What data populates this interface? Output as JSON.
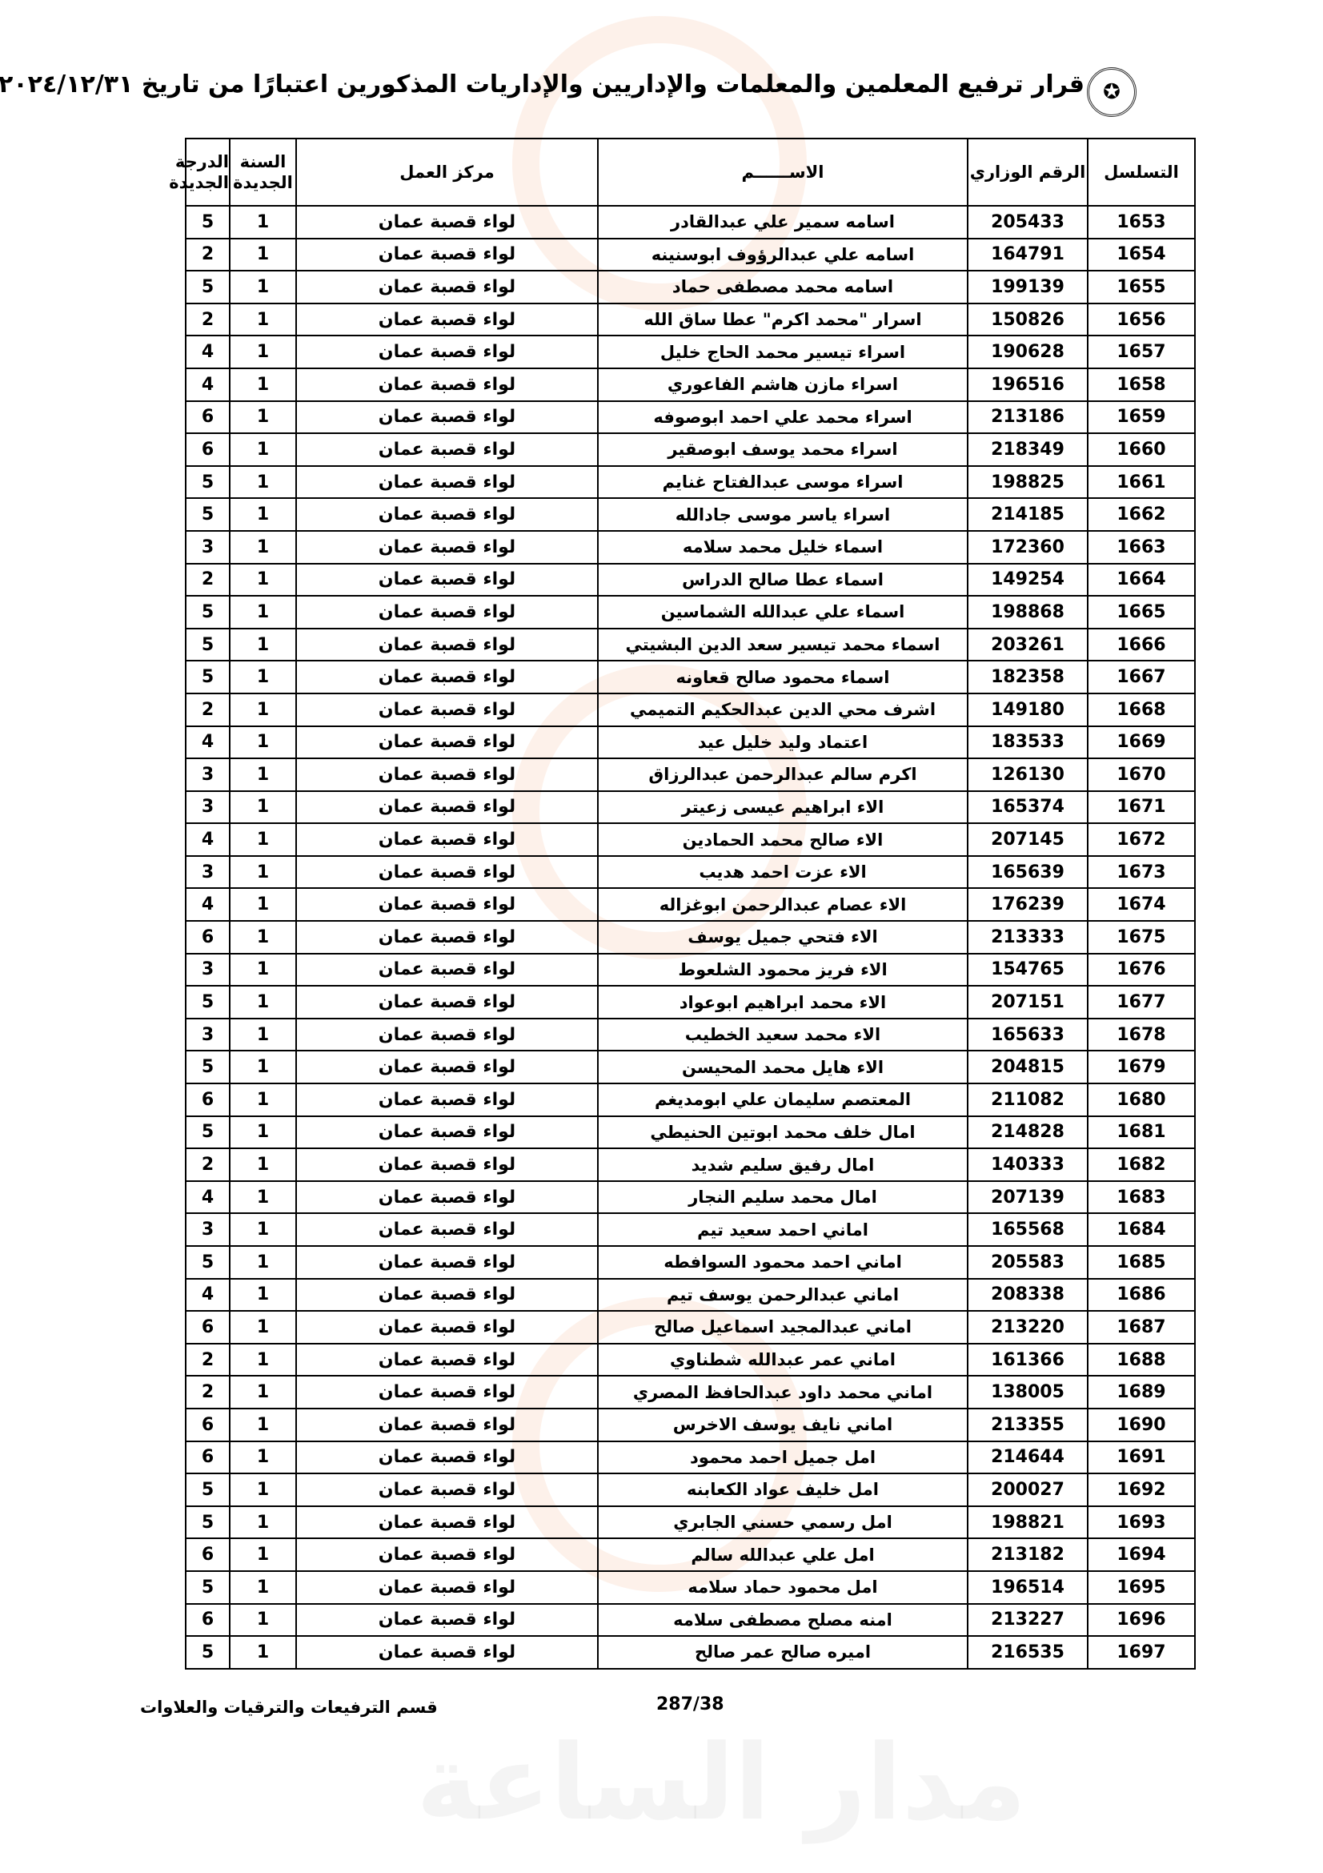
{
  "title": "قرار ترفيع المعلمين والمعلمات والإداريين والإداريات المذكورين اعتبارًا من تاريخ ٢٠٢٤/١٢/٣١",
  "logo_icon": "ministry-emblem-icon",
  "watermark": "مدار الساعة الإخبارية",
  "columns": {
    "serial": "التسلسل",
    "ministry_no": "الرقم الوزاري",
    "name": "الاســــــم",
    "work_center": "مركز العمل",
    "new_year": "السنة الجديدة",
    "new_grade": "الدرجة الجديدة"
  },
  "rows": [
    {
      "serial": "1653",
      "ministry_no": "205433",
      "name": "اسامه سمير علي عبدالقادر",
      "work_center": "لواء قصبة عمان",
      "new_year": "1",
      "new_grade": "5"
    },
    {
      "serial": "1654",
      "ministry_no": "164791",
      "name": "اسامه علي عبدالرؤوف ابوسنينه",
      "work_center": "لواء قصبة عمان",
      "new_year": "1",
      "new_grade": "2"
    },
    {
      "serial": "1655",
      "ministry_no": "199139",
      "name": "اسامه محمد مصطفى حماد",
      "work_center": "لواء قصبة عمان",
      "new_year": "1",
      "new_grade": "5"
    },
    {
      "serial": "1656",
      "ministry_no": "150826",
      "name": "اسرار \"محمد اكرم\" عطا ساق الله",
      "work_center": "لواء قصبة عمان",
      "new_year": "1",
      "new_grade": "2"
    },
    {
      "serial": "1657",
      "ministry_no": "190628",
      "name": "اسراء تيسير محمد الحاج خليل",
      "work_center": "لواء قصبة عمان",
      "new_year": "1",
      "new_grade": "4"
    },
    {
      "serial": "1658",
      "ministry_no": "196516",
      "name": "اسراء مازن هاشم الفاعوري",
      "work_center": "لواء قصبة عمان",
      "new_year": "1",
      "new_grade": "4"
    },
    {
      "serial": "1659",
      "ministry_no": "213186",
      "name": "اسراء محمد علي احمد ابوصوفه",
      "work_center": "لواء قصبة عمان",
      "new_year": "1",
      "new_grade": "6"
    },
    {
      "serial": "1660",
      "ministry_no": "218349",
      "name": "اسراء محمد يوسف ابوصقير",
      "work_center": "لواء قصبة عمان",
      "new_year": "1",
      "new_grade": "6"
    },
    {
      "serial": "1661",
      "ministry_no": "198825",
      "name": "اسراء موسى عبدالفتاح غنايم",
      "work_center": "لواء قصبة عمان",
      "new_year": "1",
      "new_grade": "5"
    },
    {
      "serial": "1662",
      "ministry_no": "214185",
      "name": "اسراء ياسر موسى جادالله",
      "work_center": "لواء قصبة عمان",
      "new_year": "1",
      "new_grade": "5"
    },
    {
      "serial": "1663",
      "ministry_no": "172360",
      "name": "اسماء خليل محمد سلامه",
      "work_center": "لواء قصبة عمان",
      "new_year": "1",
      "new_grade": "3"
    },
    {
      "serial": "1664",
      "ministry_no": "149254",
      "name": "اسماء عطا صالح الدراس",
      "work_center": "لواء قصبة عمان",
      "new_year": "1",
      "new_grade": "2"
    },
    {
      "serial": "1665",
      "ministry_no": "198868",
      "name": "اسماء علي عبدالله الشماسين",
      "work_center": "لواء قصبة عمان",
      "new_year": "1",
      "new_grade": "5"
    },
    {
      "serial": "1666",
      "ministry_no": "203261",
      "name": "اسماء محمد تيسير سعد الدين البشيتي",
      "work_center": "لواء قصبة عمان",
      "new_year": "1",
      "new_grade": "5"
    },
    {
      "serial": "1667",
      "ministry_no": "182358",
      "name": "اسماء محمود صالح قعاونه",
      "work_center": "لواء قصبة عمان",
      "new_year": "1",
      "new_grade": "5"
    },
    {
      "serial": "1668",
      "ministry_no": "149180",
      "name": "اشرف محي الدين عبدالحكيم التميمي",
      "work_center": "لواء قصبة عمان",
      "new_year": "1",
      "new_grade": "2"
    },
    {
      "serial": "1669",
      "ministry_no": "183533",
      "name": "اعتماد وليد خليل عيد",
      "work_center": "لواء قصبة عمان",
      "new_year": "1",
      "new_grade": "4"
    },
    {
      "serial": "1670",
      "ministry_no": "126130",
      "name": "اكرم سالم عبدالرحمن عبدالرزاق",
      "work_center": "لواء قصبة عمان",
      "new_year": "1",
      "new_grade": "3"
    },
    {
      "serial": "1671",
      "ministry_no": "165374",
      "name": "الاء ابراهيم عيسى زعيتر",
      "work_center": "لواء قصبة عمان",
      "new_year": "1",
      "new_grade": "3"
    },
    {
      "serial": "1672",
      "ministry_no": "207145",
      "name": "الاء صالح محمد الحمادين",
      "work_center": "لواء قصبة عمان",
      "new_year": "1",
      "new_grade": "4"
    },
    {
      "serial": "1673",
      "ministry_no": "165639",
      "name": "الاء عزت احمد هديب",
      "work_center": "لواء قصبة عمان",
      "new_year": "1",
      "new_grade": "3"
    },
    {
      "serial": "1674",
      "ministry_no": "176239",
      "name": "الاء عصام عبدالرحمن ابوغزاله",
      "work_center": "لواء قصبة عمان",
      "new_year": "1",
      "new_grade": "4"
    },
    {
      "serial": "1675",
      "ministry_no": "213333",
      "name": "الاء فتحي جميل يوسف",
      "work_center": "لواء قصبة عمان",
      "new_year": "1",
      "new_grade": "6"
    },
    {
      "serial": "1676",
      "ministry_no": "154765",
      "name": "الاء فريز محمود الشلعوط",
      "work_center": "لواء قصبة عمان",
      "new_year": "1",
      "new_grade": "3"
    },
    {
      "serial": "1677",
      "ministry_no": "207151",
      "name": "الاء محمد ابراهيم ابوعواد",
      "work_center": "لواء قصبة عمان",
      "new_year": "1",
      "new_grade": "5"
    },
    {
      "serial": "1678",
      "ministry_no": "165633",
      "name": "الاء محمد سعيد الخطيب",
      "work_center": "لواء قصبة عمان",
      "new_year": "1",
      "new_grade": "3"
    },
    {
      "serial": "1679",
      "ministry_no": "204815",
      "name": "الاء هايل محمد المحيسن",
      "work_center": "لواء قصبة عمان",
      "new_year": "1",
      "new_grade": "5"
    },
    {
      "serial": "1680",
      "ministry_no": "211082",
      "name": "المعتصم سليمان علي ابومديغم",
      "work_center": "لواء قصبة عمان",
      "new_year": "1",
      "new_grade": "6"
    },
    {
      "serial": "1681",
      "ministry_no": "214828",
      "name": "امال خلف محمد ابوتين الحنيطي",
      "work_center": "لواء قصبة عمان",
      "new_year": "1",
      "new_grade": "5"
    },
    {
      "serial": "1682",
      "ministry_no": "140333",
      "name": "امال رفيق سليم شديد",
      "work_center": "لواء قصبة عمان",
      "new_year": "1",
      "new_grade": "2"
    },
    {
      "serial": "1683",
      "ministry_no": "207139",
      "name": "امال محمد سليم النجار",
      "work_center": "لواء قصبة عمان",
      "new_year": "1",
      "new_grade": "4"
    },
    {
      "serial": "1684",
      "ministry_no": "165568",
      "name": "اماني احمد سعيد تيم",
      "work_center": "لواء قصبة عمان",
      "new_year": "1",
      "new_grade": "3"
    },
    {
      "serial": "1685",
      "ministry_no": "205583",
      "name": "اماني احمد محمود السوافطه",
      "work_center": "لواء قصبة عمان",
      "new_year": "1",
      "new_grade": "5"
    },
    {
      "serial": "1686",
      "ministry_no": "208338",
      "name": "اماني عبدالرحمن يوسف تيم",
      "work_center": "لواء قصبة عمان",
      "new_year": "1",
      "new_grade": "4"
    },
    {
      "serial": "1687",
      "ministry_no": "213220",
      "name": "اماني عبدالمجيد اسماعيل صالح",
      "work_center": "لواء قصبة عمان",
      "new_year": "1",
      "new_grade": "6"
    },
    {
      "serial": "1688",
      "ministry_no": "161366",
      "name": "اماني عمر عبدالله شطناوي",
      "work_center": "لواء قصبة عمان",
      "new_year": "1",
      "new_grade": "2"
    },
    {
      "serial": "1689",
      "ministry_no": "138005",
      "name": "اماني محمد داود عبدالحافظ المصري",
      "work_center": "لواء قصبة عمان",
      "new_year": "1",
      "new_grade": "2"
    },
    {
      "serial": "1690",
      "ministry_no": "213355",
      "name": "اماني نايف يوسف الاخرس",
      "work_center": "لواء قصبة عمان",
      "new_year": "1",
      "new_grade": "6"
    },
    {
      "serial": "1691",
      "ministry_no": "214644",
      "name": "امل جميل احمد محمود",
      "work_center": "لواء قصبة عمان",
      "new_year": "1",
      "new_grade": "6"
    },
    {
      "serial": "1692",
      "ministry_no": "200027",
      "name": "امل خليف عواد الكعابنه",
      "work_center": "لواء قصبة عمان",
      "new_year": "1",
      "new_grade": "5"
    },
    {
      "serial": "1693",
      "ministry_no": "198821",
      "name": "امل رسمي حسني الجابري",
      "work_center": "لواء قصبة عمان",
      "new_year": "1",
      "new_grade": "5"
    },
    {
      "serial": "1694",
      "ministry_no": "213182",
      "name": "امل علي عبدالله سالم",
      "work_center": "لواء قصبة عمان",
      "new_year": "1",
      "new_grade": "6"
    },
    {
      "serial": "1695",
      "ministry_no": "196514",
      "name": "امل محمود حماد سلامه",
      "work_center": "لواء قصبة عمان",
      "new_year": "1",
      "new_grade": "5"
    },
    {
      "serial": "1696",
      "ministry_no": "213227",
      "name": "امنه مصلح مصطفى سلامه",
      "work_center": "لواء قصبة عمان",
      "new_year": "1",
      "new_grade": "6"
    },
    {
      "serial": "1697",
      "ministry_no": "216535",
      "name": "اميره صالح عمر صالح",
      "work_center": "لواء قصبة عمان",
      "new_year": "1",
      "new_grade": "5"
    }
  ],
  "footer": {
    "page": "287/38",
    "department": "قسم الترفيعات والترقيات والعلاوات"
  }
}
